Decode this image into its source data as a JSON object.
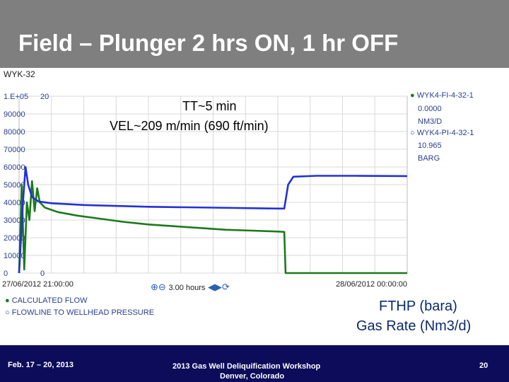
{
  "slide": {
    "title": "Field – Plunger 2 hrs ON, 1 hr OFF",
    "panel_name": "WYK-32"
  },
  "annotations": {
    "tt": "TT~5 min",
    "vel": "VEL~209 m/min (690 ft/min)",
    "fthp": "FTHP (bara)",
    "gas_rate": "Gas Rate (Nm3/d)"
  },
  "right_legend": {
    "flow_tag": "WYK4-FI-4-32-1",
    "flow_value": "0.0000",
    "flow_unit": "NM3/D",
    "pressure_tag": "WYK4-PI-4-32-1",
    "pressure_value": "10.965",
    "pressure_unit": "BARG"
  },
  "controls": {
    "zoom_in_icon": "zoom-in-icon",
    "zoom_out_icon": "zoom-out-icon",
    "range_label": "3.00 hours",
    "back_icon": "arrow-left-icon",
    "forward_icon": "arrow-right-icon",
    "refresh_icon": "refresh-icon"
  },
  "footer": {
    "dates": "Feb. 17 – 20, 2013",
    "workshop": "2013 Gas Well Deliquification Workshop",
    "location": "Denver, Colorado",
    "page": "20"
  },
  "colors": {
    "flow": "#1b7a1b",
    "pressure": "#2230d8",
    "title_bar": "#7f7f7f",
    "footer": "#0c0c5a",
    "legend_text": "#2a3d8f"
  },
  "chart_data": {
    "type": "line",
    "y_axis_left": {
      "range": [
        0,
        100000
      ],
      "ticks": [
        "0",
        "10000",
        "20000",
        "30000",
        "40000",
        "50000",
        "60000",
        "70000",
        "80000",
        "90000",
        "1.E+05"
      ]
    },
    "y_axis_right": {
      "range": [
        0,
        20
      ],
      "ticks": [
        "0",
        "20"
      ]
    },
    "x_axis": {
      "start_label": "27/06/2012 21:00:00",
      "end_label": "28/06/2012 00:00:00",
      "range_hours": [
        0,
        3
      ]
    },
    "grid": true,
    "legend_position": "bottom-left",
    "series": [
      {
        "name": "CALCULATED FLOW",
        "axis": "left",
        "color": "#1b7a1b",
        "points": [
          [
            0.0,
            0
          ],
          [
            0.02,
            50000
          ],
          [
            0.04,
            2000
          ],
          [
            0.06,
            40000
          ],
          [
            0.08,
            30000
          ],
          [
            0.1,
            52000
          ],
          [
            0.12,
            35000
          ],
          [
            0.14,
            48000
          ],
          [
            0.16,
            40000
          ],
          [
            0.2,
            37000
          ],
          [
            0.3,
            34500
          ],
          [
            0.45,
            32500
          ],
          [
            0.6,
            31000
          ],
          [
            0.8,
            29000
          ],
          [
            1.0,
            27500
          ],
          [
            1.2,
            26500
          ],
          [
            1.4,
            25500
          ],
          [
            1.6,
            24500
          ],
          [
            1.8,
            24000
          ],
          [
            2.0,
            23500
          ],
          [
            2.05,
            23300
          ],
          [
            2.06,
            0
          ],
          [
            2.5,
            0
          ],
          [
            3.0,
            0
          ]
        ]
      },
      {
        "name": "FLOWLINE TO WELLHEAD PRESSURE",
        "axis": "right",
        "color": "#2230d8",
        "points": [
          [
            0.0,
            0
          ],
          [
            0.03,
            8.0
          ],
          [
            0.05,
            12.0
          ],
          [
            0.07,
            10.0
          ],
          [
            0.1,
            8.6
          ],
          [
            0.15,
            8.1
          ],
          [
            0.25,
            7.9
          ],
          [
            0.5,
            7.7
          ],
          [
            1.0,
            7.5
          ],
          [
            1.5,
            7.4
          ],
          [
            2.0,
            7.3
          ],
          [
            2.05,
            7.3
          ],
          [
            2.08,
            10.0
          ],
          [
            2.12,
            10.9
          ],
          [
            2.3,
            11.0
          ],
          [
            2.6,
            11.0
          ],
          [
            3.0,
            10.97
          ]
        ]
      }
    ]
  }
}
